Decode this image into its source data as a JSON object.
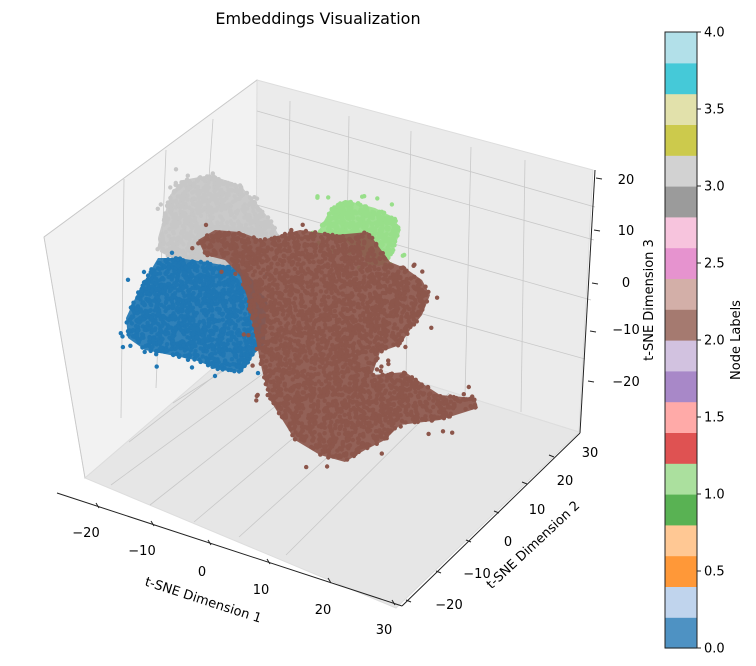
{
  "chart_data": {
    "type": "scatter",
    "projection": "3d",
    "title": "Embeddings Visualization",
    "xlabel": "t-SNE Dimension 1",
    "ylabel": "t-SNE Dimension 2",
    "zlabel": "t-SNE Dimension 3",
    "x_ticks": [
      "−20",
      "−10",
      "0",
      "10",
      "20",
      "30"
    ],
    "y_ticks": [
      "−20",
      "−10",
      "0",
      "10",
      "20",
      "30"
    ],
    "z_ticks": [
      "20",
      "10",
      "0",
      "−10",
      "−20"
    ],
    "grid": true,
    "colorbar": {
      "label": "Node Labels",
      "colormap": "tab20",
      "range": [
        0,
        4
      ],
      "ticks": [
        "0.0",
        "0.5",
        "1.0",
        "1.5",
        "2.0",
        "2.5",
        "3.0",
        "3.5",
        "4.0"
      ],
      "colors": [
        "#4e92c3",
        "#c0d4ed",
        "#ff9838",
        "#ffc894",
        "#59b253",
        "#abe09e",
        "#df5252",
        "#ffaaa8",
        "#a888c8",
        "#d2c2e0",
        "#a57a70",
        "#d3afa8",
        "#e693cf",
        "#f7c4dd",
        "#9b9b9b",
        "#d2d2d2",
        "#ccca4c",
        "#e2e1ab",
        "#45c9d8",
        "#b2e0e9"
      ]
    },
    "clusters": [
      {
        "label": 3.0,
        "color": "#c7c7c7",
        "description": "upper-left cloud"
      },
      {
        "label": 0.0,
        "color": "#1f77b4",
        "description": "left cluster"
      },
      {
        "label": 1.0,
        "color": "#98df8a",
        "description": "back-right cluster"
      },
      {
        "label": 2.0,
        "color": "#8c564b",
        "description": "large central cluster with tail"
      }
    ]
  }
}
